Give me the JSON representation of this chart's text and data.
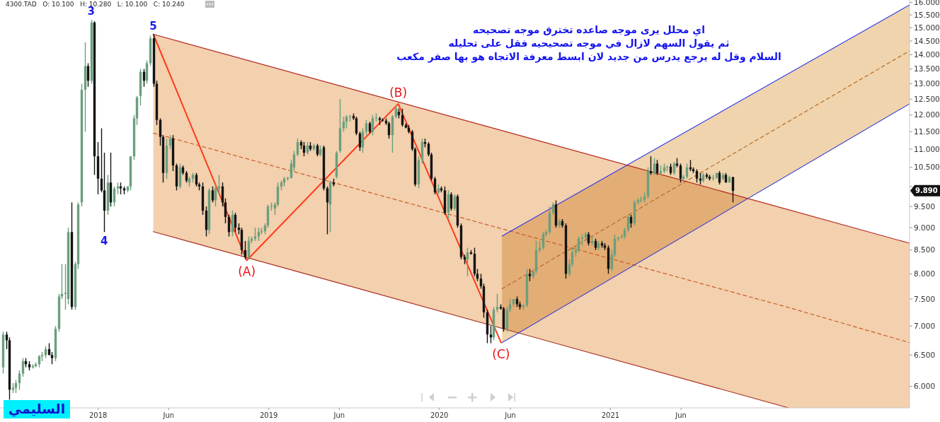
{
  "chart_data": {
    "type": "candlestick",
    "title": "اي محلل يرى موجه صاعده تخترق موجه تصحيحه\nثم يقول السهم لازال في موجه تصحيحيه فقل على تحليله\nالسلام وقل له يرجع يدرس من جديد لان ابسط معرفة الاتجاه هو بها صفر مكعب",
    "log": true,
    "grid": false,
    "colors": [
      "#6b9f7c",
      "#141414",
      "#141414",
      "#6b9f7c",
      "#6b9f7c",
      "#6b9f7c",
      "#6b9f7c",
      "#141414",
      "#141414",
      "#6b9f7c",
      "#6b9f7c",
      "#6b9f7c",
      "#6b9f7c",
      "#6b9f7c",
      "#141414",
      "#141414",
      "#6b9f7c",
      "#6b9f7c",
      "#6b9f7c",
      "#6b9f7c",
      "#6b9f7c",
      "#141414",
      "#6b9f7c",
      "#6b9f7c",
      "#6b9f7c",
      "#6b9f7c",
      "#141414",
      "#6b9f7c",
      "#141414",
      "#141414",
      "#141414",
      "#141414",
      "#6b9f7c",
      "#141414",
      "#6b9f7c",
      "#6b9f7c",
      "#141414",
      "#141414",
      "#6b9f7c",
      "#6b9f7c",
      "#6b9f7c",
      "#6b9f7c",
      "#6b9f7c",
      "#141414",
      "#6b9f7c",
      "#6b9f7c",
      "#141414",
      "#141414",
      "#141414",
      "#141414",
      "#6b9f7c",
      "#6b9f7c",
      "#141414",
      "#141414",
      "#6b9f7c",
      "#141414",
      "#141414",
      "#6b9f7c",
      "#6b9f7c",
      "#141414",
      "#141414",
      "#141414",
      "#141414",
      "#6b9f7c",
      "#141414",
      "#6b9f7c",
      "#6b9f7c",
      "#141414",
      "#141414",
      "#141414",
      "#6b9f7c",
      "#141414",
      "#141414",
      "#141414",
      "#141414",
      "#6b9f7c",
      "#6b9f7c",
      "#6b9f7c",
      "#6b9f7c",
      "#6b9f7c",
      "#6b9f7c",
      "#6b9f7c",
      "#6b9f7c",
      "#6b9f7c",
      "#6b9f7c",
      "#6b9f7c",
      "#6b9f7c",
      "#6b9f7c",
      "#6b9f7c",
      "#6b9f7c",
      "#6b9f7c",
      "#141414",
      "#141414",
      "#6b9f7c",
      "#141414",
      "#6b9f7c",
      "#141414",
      "#6b9f7c",
      "#141414",
      "#141414",
      "#6b9f7c",
      "#141414",
      "#6b9f7c",
      "#6b9f7c",
      "#6b9f7c",
      "#6b9f7c",
      "#6b9f7c",
      "#141414",
      "#141414",
      "#141414",
      "#6b9f7c",
      "#6b9f7c",
      "#141414",
      "#6b9f7c",
      "#6b9f7c",
      "#141414",
      "#141414",
      "#141414",
      "#141414",
      "#6b9f7c",
      "#6b9f7c",
      "#141414",
      "#141414",
      "#141414",
      "#141414",
      "#141414",
      "#141414",
      "#6b9f7c",
      "#6b9f7c",
      "#141414",
      "#141414",
      "#141414",
      "#141414",
      "#6b9f7c",
      "#141414",
      "#141414",
      "#6b9f7c",
      "#141414",
      "#6b9f7c",
      "#141414",
      "#141414",
      "#141414",
      "#6b9f7c",
      "#141414",
      "#141414",
      "#141414",
      "#141414",
      "#141414",
      "#141414",
      "#141414",
      "#6b9f7c",
      "#6b9f7c",
      "#141414",
      "#141414",
      "#6b9f7c",
      "#6b9f7c",
      "#6b9f7c",
      "#141414",
      "#141414",
      "#6b9f7c",
      "#6b9f7c",
      "#141414",
      "#6b9f7c",
      "#6b9f7c",
      "#6b9f7c",
      "#6b9f7c",
      "#6b9f7c",
      "#6b9f7c",
      "#6b9f7c",
      "#141414",
      "#6b9f7c",
      "#141414",
      "#141414",
      "#6b9f7c",
      "#6b9f7c",
      "#6b9f7c",
      "#6b9f7c",
      "#6b9f7c",
      "#6b9f7c",
      "#141414",
      "#6b9f7c",
      "#141414",
      "#6b9f7c",
      "#141414",
      "#141414",
      "#141414",
      "#6b9f7c",
      "#6b9f7c",
      "#6b9f7c",
      "#6b9f7c",
      "#6b9f7c",
      "#6b9f7c",
      "#141414",
      "#6b9f7c",
      "#6b9f7c",
      "#6b9f7c",
      "#6b9f7c",
      "#6b9f7c",
      "#141414",
      "#6b9f7c",
      "#141414",
      "#6b9f7c",
      "#6b9f7c",
      "#6b9f7c",
      "#141414",
      "#6b9f7c",
      "#141414",
      "#141414",
      "#6b9f7c",
      "#6b9f7c",
      "#141414",
      "#141414",
      "#141414",
      "#141414",
      "#6b9f7c",
      "#141414",
      "#141414",
      "#6b9f7c",
      "#6b9f7c",
      "#141414",
      "#6b9f7c",
      "#141414",
      "#6b9f7c",
      "#141414"
    ],
    "xlim": [
      "2017-06-05",
      "2022-10-03"
    ],
    "xticks": [
      {
        "value": "2018-01-01",
        "label": "2018"
      },
      {
        "value": "2018-06-01",
        "label": "Jun"
      },
      {
        "value": "2019-01-01",
        "label": "2019"
      },
      {
        "value": "2019-06-01",
        "label": "Jun"
      },
      {
        "value": "2020-01-01",
        "label": "2020"
      },
      {
        "value": "2020-06-01",
        "label": "Jun"
      },
      {
        "value": "2021-01-01",
        "label": "2021"
      },
      {
        "value": "2021-06-01",
        "label": "Jun"
      }
    ],
    "ylim": [
      5.68,
      16.1
    ],
    "yticks": [
      {
        "value": 6,
        "label": "6.000"
      },
      {
        "value": 6.5,
        "label": "6.500"
      },
      {
        "value": 7,
        "label": "7.000"
      },
      {
        "value": 7.5,
        "label": "7.500"
      },
      {
        "value": 8,
        "label": "8.000"
      },
      {
        "value": 8.5,
        "label": "8.500"
      },
      {
        "value": 9,
        "label": "9.000"
      },
      {
        "value": 9.5,
        "label": "9.500"
      },
      {
        "value": 10,
        "label": null
      },
      {
        "value": 10.5,
        "label": "10.500"
      },
      {
        "value": 11,
        "label": "11.000"
      },
      {
        "value": 11.5,
        "label": "11.500"
      },
      {
        "value": 12,
        "label": "12.000"
      },
      {
        "value": 12.5,
        "label": "12.500"
      },
      {
        "value": 13,
        "label": "13.000"
      },
      {
        "value": 13.5,
        "label": "13.500"
      },
      {
        "value": 14,
        "label": "14.000"
      },
      {
        "value": 14.5,
        "label": "14.500"
      },
      {
        "value": 15,
        "label": "15.000"
      },
      {
        "value": 15.5,
        "label": "15.500"
      },
      {
        "value": 16,
        "label": "16.000"
      }
    ],
    "x": [
      "2017-06-11",
      "2017-06-18",
      "2017-06-25",
      "2017-07-02",
      "2017-07-09",
      "2017-07-16",
      "2017-07-23",
      "2017-07-30",
      "2017-08-06",
      "2017-08-13",
      "2017-08-20",
      "2017-08-27",
      "2017-09-03",
      "2017-09-10",
      "2017-09-17",
      "2017-09-24",
      "2017-10-01",
      "2017-10-08",
      "2017-10-15",
      "2017-10-22",
      "2017-10-29",
      "2017-11-05",
      "2017-11-12",
      "2017-11-19",
      "2017-11-26",
      "2017-12-03",
      "2017-12-10",
      "2017-12-17",
      "2017-12-24",
      "2017-12-31",
      "2018-01-07",
      "2018-01-14",
      "2018-01-21",
      "2018-01-28",
      "2018-02-04",
      "2018-02-11",
      "2018-02-18",
      "2018-02-25",
      "2018-03-04",
      "2018-03-11",
      "2018-03-18",
      "2018-03-25",
      "2018-04-01",
      "2018-04-08",
      "2018-04-15",
      "2018-04-22",
      "2018-04-29",
      "2018-05-06",
      "2018-05-13",
      "2018-05-20",
      "2018-05-27",
      "2018-06-03",
      "2018-06-10",
      "2018-06-17",
      "2018-06-24",
      "2018-07-01",
      "2018-07-08",
      "2018-07-15",
      "2018-07-22",
      "2018-07-29",
      "2018-08-05",
      "2018-08-12",
      "2018-08-19",
      "2018-08-26",
      "2018-09-02",
      "2018-09-09",
      "2018-09-16",
      "2018-09-23",
      "2018-09-30",
      "2018-10-07",
      "2018-10-14",
      "2018-10-21",
      "2018-10-28",
      "2018-11-04",
      "2018-11-11",
      "2018-11-18",
      "2018-11-25",
      "2018-12-02",
      "2018-12-09",
      "2018-12-16",
      "2018-12-23",
      "2018-12-30",
      "2019-01-06",
      "2019-01-13",
      "2019-01-20",
      "2019-01-27",
      "2019-02-03",
      "2019-02-10",
      "2019-02-17",
      "2019-02-24",
      "2019-03-03",
      "2019-03-10",
      "2019-03-17",
      "2019-03-24",
      "2019-03-31",
      "2019-04-07",
      "2019-04-14",
      "2019-04-21",
      "2019-04-28",
      "2019-05-05",
      "2019-05-12",
      "2019-05-19",
      "2019-05-26",
      "2019-06-02",
      "2019-06-09",
      "2019-06-16",
      "2019-06-23",
      "2019-06-30",
      "2019-07-07",
      "2019-07-14",
      "2019-07-21",
      "2019-07-28",
      "2019-08-04",
      "2019-08-11",
      "2019-08-18",
      "2019-08-25",
      "2019-09-01",
      "2019-09-08",
      "2019-09-15",
      "2019-09-22",
      "2019-09-29",
      "2019-10-06",
      "2019-10-13",
      "2019-10-20",
      "2019-10-27",
      "2019-11-03",
      "2019-11-10",
      "2019-11-17",
      "2019-11-24",
      "2019-12-01",
      "2019-12-08",
      "2019-12-15",
      "2019-12-22",
      "2019-12-29",
      "2020-01-05",
      "2020-01-12",
      "2020-01-19",
      "2020-01-26",
      "2020-02-02",
      "2020-02-09",
      "2020-02-16",
      "2020-02-23",
      "2020-03-01",
      "2020-03-08",
      "2020-03-15",
      "2020-03-22",
      "2020-03-29",
      "2020-04-05",
      "2020-04-12",
      "2020-04-19",
      "2020-04-26",
      "2020-05-03",
      "2020-05-10",
      "2020-05-17",
      "2020-05-24",
      "2020-05-31",
      "2020-06-07",
      "2020-06-14",
      "2020-06-21",
      "2020-06-28",
      "2020-07-05",
      "2020-07-12",
      "2020-07-19",
      "2020-07-26",
      "2020-08-02",
      "2020-08-09",
      "2020-08-16",
      "2020-08-23",
      "2020-08-30",
      "2020-09-06",
      "2020-09-13",
      "2020-09-20",
      "2020-09-27",
      "2020-10-04",
      "2020-10-11",
      "2020-10-18",
      "2020-10-25",
      "2020-11-01",
      "2020-11-08",
      "2020-11-15",
      "2020-11-22",
      "2020-11-29",
      "2020-12-06",
      "2020-12-13",
      "2020-12-20",
      "2020-12-27",
      "2021-01-03",
      "2021-01-10",
      "2021-01-17",
      "2021-01-24",
      "2021-01-31",
      "2021-02-07",
      "2021-02-14",
      "2021-02-21",
      "2021-02-28",
      "2021-03-07",
      "2021-03-14",
      "2021-03-21",
      "2021-03-28",
      "2021-04-04",
      "2021-04-11",
      "2021-04-18",
      "2021-04-25",
      "2021-05-02",
      "2021-05-09",
      "2021-05-16",
      "2021-05-23",
      "2021-05-30",
      "2021-06-06",
      "2021-06-13",
      "2021-06-20",
      "2021-06-27",
      "2021-07-04",
      "2021-07-11",
      "2021-07-18",
      "2021-07-25",
      "2021-08-01",
      "2021-08-08",
      "2021-08-15",
      "2021-08-22",
      "2021-08-29",
      "2021-09-05",
      "2021-09-12",
      "2021-09-19"
    ],
    "ohlc": [
      [
        6.3,
        6.9,
        6.2,
        6.85
      ],
      [
        6.85,
        6.9,
        6.6,
        6.75
      ],
      [
        6.75,
        6.8,
        5.8,
        5.95
      ],
      [
        5.95,
        6.05,
        5.9,
        5.98
      ],
      [
        5.98,
        6.1,
        5.9,
        6.05
      ],
      [
        6.05,
        6.25,
        5.95,
        6.2
      ],
      [
        6.2,
        6.45,
        6.15,
        6.4
      ],
      [
        6.4,
        6.45,
        6.3,
        6.35
      ],
      [
        6.35,
        6.4,
        6.25,
        6.3
      ],
      [
        6.3,
        6.35,
        6.28,
        6.32
      ],
      [
        6.32,
        6.38,
        6.3,
        6.35
      ],
      [
        6.35,
        6.5,
        6.3,
        6.48
      ],
      [
        6.48,
        6.55,
        6.4,
        6.5
      ],
      [
        6.5,
        6.65,
        6.45,
        6.6
      ],
      [
        6.6,
        6.7,
        6.5,
        6.5
      ],
      [
        6.5,
        6.55,
        6.35,
        6.45
      ],
      [
        6.45,
        7.0,
        6.4,
        6.95
      ],
      [
        6.95,
        7.6,
        6.9,
        7.55
      ],
      [
        7.55,
        8.2,
        7.5,
        7.6
      ],
      [
        7.6,
        8.2,
        7.3,
        7.62
      ],
      [
        7.5,
        9.0,
        7.4,
        8.9
      ],
      [
        8.9,
        9.6,
        7.3,
        7.35
      ],
      [
        7.35,
        8.25,
        7.3,
        8.2
      ],
      [
        8.2,
        9.6,
        8.1,
        9.55
      ],
      [
        9.6,
        13.0,
        9.5,
        12.8
      ],
      [
        12.8,
        14.45,
        11.5,
        13.6
      ],
      [
        13.6,
        13.7,
        12.9,
        13.1
      ],
      [
        13.1,
        15.3,
        13.0,
        15.2
      ],
      [
        15.2,
        15.25,
        10.3,
        10.8
      ],
      [
        10.8,
        11.2,
        9.8,
        10.2
      ],
      [
        10.2,
        11.6,
        9.85,
        9.9
      ],
      [
        9.9,
        10.9,
        8.9,
        9.4
      ],
      [
        9.4,
        10.3,
        9.3,
        10.1
      ],
      [
        10.1,
        10.9,
        9.5,
        9.6
      ],
      [
        9.6,
        10.0,
        9.5,
        9.95
      ],
      [
        9.95,
        10.1,
        9.8,
        10.0
      ],
      [
        10.0,
        10.1,
        9.8,
        9.95
      ],
      [
        9.95,
        10.0,
        9.8,
        9.9
      ],
      [
        9.9,
        10.0,
        9.85,
        10.0
      ],
      [
        10.0,
        10.8,
        9.9,
        10.8
      ],
      [
        10.8,
        12.0,
        10.7,
        11.9
      ],
      [
        11.9,
        12.6,
        11.7,
        12.55
      ],
      [
        12.6,
        13.5,
        12.3,
        13.4
      ],
      [
        13.4,
        13.5,
        12.9,
        13.1
      ],
      [
        13.1,
        13.8,
        13.0,
        13.7
      ],
      [
        13.7,
        14.7,
        13.6,
        14.6
      ],
      [
        14.6,
        14.75,
        12.9,
        13.0
      ],
      [
        13.0,
        13.1,
        11.7,
        11.85
      ],
      [
        11.85,
        11.9,
        11.1,
        11.35
      ],
      [
        11.35,
        11.4,
        10.1,
        10.35
      ],
      [
        10.35,
        11.3,
        10.2,
        11.1
      ],
      [
        11.1,
        11.4,
        11.0,
        11.3
      ],
      [
        11.3,
        11.4,
        10.4,
        10.55
      ],
      [
        10.55,
        10.6,
        9.9,
        10.0
      ],
      [
        10.0,
        10.6,
        9.95,
        10.5
      ],
      [
        10.5,
        10.55,
        10.3,
        10.35
      ],
      [
        10.35,
        10.4,
        10.1,
        10.15
      ],
      [
        10.1,
        10.25,
        10.0,
        10.2
      ],
      [
        10.2,
        10.35,
        10.1,
        10.3
      ],
      [
        10.3,
        10.35,
        10.0,
        10.05
      ],
      [
        10.05,
        10.1,
        9.9,
        10.0
      ],
      [
        10.0,
        10.1,
        9.3,
        9.4
      ],
      [
        9.4,
        9.5,
        8.8,
        8.95
      ],
      [
        8.95,
        9.95,
        8.85,
        9.9
      ],
      [
        9.9,
        10.0,
        9.6,
        9.65
      ],
      [
        9.65,
        10.1,
        9.5,
        9.95
      ],
      [
        9.95,
        10.3,
        9.8,
        10.0
      ],
      [
        10.0,
        10.1,
        9.5,
        9.6
      ],
      [
        9.6,
        9.7,
        9.1,
        9.25
      ],
      [
        9.25,
        9.3,
        8.8,
        8.9
      ],
      [
        8.9,
        9.4,
        8.8,
        9.3
      ],
      [
        9.3,
        9.35,
        8.9,
        9.0
      ],
      [
        9.0,
        9.1,
        8.85,
        8.95
      ],
      [
        8.95,
        9.0,
        8.4,
        8.5
      ],
      [
        8.5,
        8.7,
        8.3,
        8.35
      ],
      [
        8.35,
        8.8,
        8.3,
        8.7
      ],
      [
        8.7,
        8.8,
        8.65,
        8.75
      ],
      [
        8.75,
        9.0,
        8.7,
        8.8
      ],
      [
        8.8,
        9.0,
        8.7,
        8.9
      ],
      [
        8.9,
        9.0,
        8.85,
        8.92
      ],
      [
        8.92,
        9.1,
        8.85,
        9.05
      ],
      [
        9.05,
        9.55,
        9.0,
        9.5
      ],
      [
        9.5,
        9.6,
        9.4,
        9.52
      ],
      [
        9.45,
        9.6,
        9.3,
        9.55
      ],
      [
        9.55,
        10.1,
        9.5,
        10.0
      ],
      [
        10.0,
        10.15,
        9.9,
        10.1
      ],
      [
        10.1,
        10.25,
        10.0,
        10.2
      ],
      [
        10.2,
        10.25,
        10.15,
        10.22
      ],
      [
        10.22,
        10.7,
        10.2,
        10.6
      ],
      [
        10.5,
        10.95,
        10.4,
        10.85
      ],
      [
        10.85,
        11.3,
        10.8,
        11.2
      ],
      [
        11.2,
        11.25,
        11.0,
        11.1
      ],
      [
        11.1,
        11.2,
        10.8,
        10.9
      ],
      [
        10.9,
        11.2,
        10.85,
        11.1
      ],
      [
        11.1,
        11.2,
        10.95,
        11.0
      ],
      [
        11.0,
        11.15,
        10.95,
        11.1
      ],
      [
        11.1,
        11.15,
        10.8,
        10.85
      ],
      [
        10.85,
        11.1,
        10.8,
        11.0
      ],
      [
        11.05,
        11.1,
        9.9,
        9.95
      ],
      [
        9.95,
        10.0,
        8.85,
        9.6
      ],
      [
        9.55,
        10.15,
        8.9,
        10.1
      ],
      [
        10.1,
        10.2,
        10.0,
        10.05
      ],
      [
        10.25,
        10.95,
        10.2,
        10.9
      ],
      [
        10.95,
        12.5,
        10.9,
        11.6
      ],
      [
        11.6,
        11.95,
        11.5,
        11.8
      ],
      [
        11.8,
        12.0,
        11.6,
        11.95
      ],
      [
        11.95,
        12.0,
        11.8,
        11.97
      ],
      [
        11.97,
        12.05,
        11.85,
        11.9
      ],
      [
        11.9,
        11.95,
        11.4,
        11.45
      ],
      [
        11.45,
        11.5,
        10.95,
        11.05
      ],
      [
        11.05,
        11.6,
        10.9,
        11.5
      ],
      [
        11.5,
        11.85,
        11.4,
        11.75
      ],
      [
        11.75,
        11.8,
        11.45,
        11.5
      ],
      [
        11.5,
        12.0,
        11.4,
        11.9
      ],
      [
        11.9,
        12.05,
        11.8,
        11.92
      ],
      [
        11.9,
        11.95,
        11.7,
        11.85
      ],
      [
        11.85,
        11.9,
        11.8,
        11.83
      ],
      [
        11.83,
        11.9,
        11.7,
        11.75
      ],
      [
        11.75,
        11.8,
        11.3,
        11.4
      ],
      [
        11.4,
        12.0,
        10.9,
        11.95
      ],
      [
        11.95,
        12.3,
        11.9,
        12.2
      ],
      [
        12.1,
        12.2,
        11.9,
        12.0
      ],
      [
        12.0,
        12.2,
        11.65,
        11.7
      ],
      [
        11.7,
        11.75,
        11.6,
        11.62
      ],
      [
        11.62,
        11.7,
        11.45,
        11.5
      ],
      [
        11.5,
        11.55,
        10.95,
        11.0
      ],
      [
        11.0,
        11.05,
        10.0,
        10.05
      ],
      [
        10.05,
        10.8,
        9.95,
        10.7
      ],
      [
        10.7,
        11.3,
        10.6,
        11.2
      ],
      [
        11.2,
        11.3,
        11.05,
        11.15
      ],
      [
        11.15,
        11.2,
        10.8,
        10.85
      ],
      [
        10.85,
        10.9,
        10.15,
        10.2
      ],
      [
        10.2,
        10.25,
        9.8,
        9.85
      ],
      [
        9.85,
        10.05,
        9.8,
        9.95
      ],
      [
        9.95,
        10.0,
        9.85,
        9.9
      ],
      [
        9.9,
        10.0,
        9.3,
        9.35
      ],
      [
        9.35,
        9.9,
        9.2,
        9.8
      ],
      [
        9.8,
        9.85,
        9.4,
        9.45
      ],
      [
        9.45,
        9.8,
        9.4,
        9.75
      ],
      [
        9.75,
        9.8,
        9.0,
        9.05
      ],
      [
        9.05,
        9.1,
        8.3,
        8.35
      ],
      [
        8.35,
        8.4,
        8.2,
        8.3
      ],
      [
        8.3,
        8.55,
        7.95,
        8.45
      ],
      [
        8.45,
        8.5,
        8.4,
        8.42
      ],
      [
        8.42,
        8.55,
        7.95,
        8.0
      ],
      [
        8.0,
        8.1,
        7.85,
        7.9
      ],
      [
        7.9,
        8.0,
        7.7,
        7.75
      ],
      [
        7.75,
        7.8,
        7.15,
        7.25
      ],
      [
        7.25,
        7.3,
        6.7,
        6.85
      ],
      [
        6.85,
        7.0,
        6.7,
        6.8
      ],
      [
        6.8,
        7.35,
        6.75,
        7.3
      ],
      [
        7.3,
        7.6,
        7.25,
        7.35
      ],
      [
        7.35,
        7.4,
        7.3,
        7.32
      ],
      [
        7.32,
        7.35,
        6.9,
        6.95
      ],
      [
        6.95,
        7.35,
        6.9,
        7.3
      ],
      [
        7.3,
        7.5,
        7.25,
        7.4
      ],
      [
        7.4,
        7.5,
        7.35,
        7.5
      ],
      [
        7.5,
        7.55,
        7.35,
        7.4
      ],
      [
        7.4,
        7.45,
        7.3,
        7.35
      ],
      [
        7.35,
        7.4,
        7.3,
        7.38
      ],
      [
        7.38,
        8.1,
        7.35,
        8.0
      ],
      [
        8.0,
        8.1,
        7.85,
        7.95
      ],
      [
        7.95,
        8.1,
        7.9,
        8.05
      ],
      [
        8.05,
        8.7,
        8.0,
        8.5
      ],
      [
        8.5,
        8.7,
        8.45,
        8.55
      ],
      [
        8.55,
        8.9,
        8.5,
        8.85
      ],
      [
        8.85,
        8.95,
        8.8,
        8.9
      ],
      [
        8.9,
        9.5,
        8.85,
        9.35
      ],
      [
        9.35,
        9.6,
        9.3,
        9.55
      ],
      [
        9.55,
        9.65,
        9.0,
        9.05
      ],
      [
        9.05,
        9.2,
        9.0,
        9.15
      ],
      [
        9.15,
        9.2,
        9.0,
        9.05
      ],
      [
        9.05,
        9.1,
        7.9,
        8.0
      ],
      [
        8.0,
        8.3,
        7.95,
        8.2
      ],
      [
        8.2,
        8.55,
        8.15,
        8.45
      ],
      [
        8.45,
        8.6,
        8.35,
        8.5
      ],
      [
        8.5,
        8.8,
        8.45,
        8.75
      ],
      [
        8.75,
        8.85,
        8.6,
        8.78
      ],
      [
        8.78,
        8.9,
        8.7,
        8.85
      ],
      [
        8.85,
        8.9,
        8.6,
        8.65
      ],
      [
        8.65,
        8.8,
        8.6,
        8.7
      ],
      [
        8.7,
        8.75,
        8.5,
        8.55
      ],
      [
        8.55,
        8.7,
        8.5,
        8.65
      ],
      [
        8.65,
        8.7,
        8.55,
        8.6
      ],
      [
        8.6,
        8.65,
        8.5,
        8.55
      ],
      [
        8.55,
        8.6,
        8.0,
        8.1
      ],
      [
        8.1,
        8.5,
        8.05,
        8.4
      ],
      [
        8.4,
        8.85,
        8.35,
        8.75
      ],
      [
        8.75,
        8.8,
        8.7,
        8.78
      ],
      [
        8.78,
        8.85,
        8.75,
        8.8
      ],
      [
        8.8,
        9.0,
        8.75,
        8.95
      ],
      [
        8.95,
        9.3,
        8.9,
        9.25
      ],
      [
        9.25,
        9.3,
        9.0,
        9.1
      ],
      [
        9.1,
        9.65,
        9.05,
        9.6
      ],
      [
        9.6,
        9.7,
        9.55,
        9.65
      ],
      [
        9.65,
        9.75,
        9.6,
        9.67
      ],
      [
        9.67,
        9.85,
        9.6,
        9.75
      ],
      [
        9.75,
        10.5,
        9.7,
        10.4
      ],
      [
        10.4,
        10.8,
        10.3,
        10.35
      ],
      [
        10.35,
        10.75,
        10.3,
        10.6
      ],
      [
        10.6,
        10.7,
        10.3,
        10.35
      ],
      [
        10.35,
        10.55,
        10.3,
        10.4
      ],
      [
        10.4,
        10.6,
        10.35,
        10.5
      ],
      [
        10.5,
        10.55,
        10.4,
        10.52
      ],
      [
        10.52,
        10.6,
        10.3,
        10.35
      ],
      [
        10.35,
        10.65,
        10.3,
        10.6
      ],
      [
        10.6,
        10.75,
        10.5,
        10.55
      ],
      [
        10.55,
        10.6,
        10.1,
        10.2
      ],
      [
        10.2,
        10.3,
        10.15,
        10.25
      ],
      [
        10.25,
        10.6,
        10.2,
        10.5
      ],
      [
        10.5,
        10.7,
        10.4,
        10.45
      ],
      [
        10.45,
        10.5,
        10.35,
        10.4
      ],
      [
        10.4,
        10.45,
        10.1,
        10.2
      ],
      [
        10.2,
        10.35,
        10.05,
        10.15
      ],
      [
        10.15,
        10.35,
        10.1,
        10.3
      ],
      [
        10.3,
        10.35,
        10.2,
        10.25
      ],
      [
        10.25,
        10.3,
        10.15,
        10.2
      ],
      [
        10.2,
        10.3,
        10.15,
        10.22
      ],
      [
        10.22,
        10.35,
        10.2,
        10.35
      ],
      [
        10.35,
        10.4,
        10.05,
        10.1
      ],
      [
        10.2,
        10.35,
        10.15,
        10.3
      ],
      [
        10.3,
        10.35,
        10.1,
        10.1
      ],
      [
        10.1,
        10.28,
        10.1,
        10.24
      ],
      [
        10.24,
        10.25,
        9.6,
        9.89
      ]
    ],
    "series": [
      {
        "type": "line",
        "x": [
          "2018-04-29",
          "2022-01-17",
          "2022-10-03"
        ],
        "values": [
          11.46,
          7.34,
          6.71
        ],
        "lower": [
          8.91,
          5.68,
          5.68
        ],
        "upper": [
          14.75,
          9.44,
          8.65
        ],
        "color": "#c8541e",
        "line_style": "dashed"
      },
      {
        "type": "line",
        "x": [
          "2020-05-14",
          "2022-10-03"
        ],
        "values": [
          7.7,
          14.14
        ],
        "lower": [
          6.71,
          12.35
        ],
        "upper": [
          8.81,
          15.9
        ],
        "color": "#b5651d",
        "line_style": "dashed"
      },
      {
        "type": "line",
        "x": [
          "2018-04-29",
          "2022-10-03"
        ],
        "values": [
          14.75,
          8.65
        ],
        "color": "#b3261e",
        "line_style": "solid"
      },
      {
        "type": "line",
        "x": [
          "2018-04-29",
          "2022-01-17"
        ],
        "values": [
          8.91,
          5.68
        ],
        "color": "#a52a1b",
        "line_style": "solid"
      },
      {
        "type": "line",
        "x": [
          "2020-05-14",
          "2022-10-03"
        ],
        "values": [
          8.81,
          15.9
        ],
        "color": "#2a35e8",
        "line_style": "solid"
      },
      {
        "type": "line",
        "x": [
          "2020-05-14",
          "2022-10-03"
        ],
        "values": [
          6.71,
          12.35
        ],
        "color": "#3a40d0",
        "line_style": "solid"
      },
      {
        "type": "line",
        "x": [
          "2018-04-29",
          "2018-11-15",
          "2019-10-05",
          "2020-05-12"
        ],
        "values": [
          14.75,
          8.28,
          12.35,
          6.71
        ],
        "color": "#ff3b1a",
        "line_style": "solid"
      }
    ],
    "annotations": [
      "4300.TAD   O: 10.100   H: 10.280   L: 10.100   C: 10.240",
      "السليمي",
      "9.890",
      {
        "text": "3",
        "x": "2017-12-17",
        "y": 15.3
      },
      {
        "text": "5",
        "x": "2018-04-29",
        "y": 14.75
      },
      {
        "text": "4",
        "x": "2018-01-14",
        "y": 8.9
      },
      {
        "text": "(A)",
        "x": "2018-11-15",
        "y": 8.28
      },
      {
        "text": "(B)",
        "x": "2019-10-05",
        "y": 12.35
      },
      {
        "text": "(C)",
        "x": "2020-05-12",
        "y": 6.71
      }
    ]
  }
}
